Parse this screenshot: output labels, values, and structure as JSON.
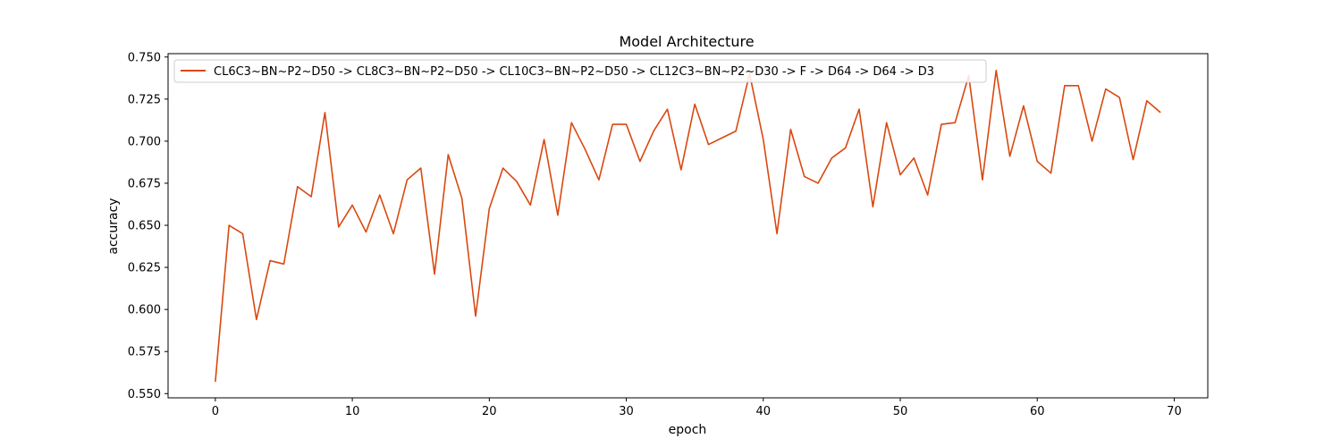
{
  "chart_data": {
    "type": "line",
    "title": "Model Architecture",
    "xlabel": "epoch",
    "ylabel": "accuracy",
    "xlim": [
      -3.45,
      72.45
    ],
    "ylim": [
      0.5475,
      0.752
    ],
    "xticks": [
      0,
      10,
      20,
      30,
      40,
      50,
      60,
      70
    ],
    "yticks": [
      0.55,
      0.575,
      0.6,
      0.625,
      0.65,
      0.675,
      0.7,
      0.725,
      0.75
    ],
    "ytick_labels": [
      "0.550",
      "0.575",
      "0.600",
      "0.625",
      "0.650",
      "0.675",
      "0.700",
      "0.725",
      "0.750"
    ],
    "grid": false,
    "legend_position": "top-left",
    "series": [
      {
        "name": "CL6C3~BN~P2~D50 -> CL8C3~BN~P2~D50 -> CL10C3~BN~P2~D50 -> CL12C3~BN~P2~D30 -> F -> D64 -> D64 -> D3",
        "color": "#d9480f",
        "x": [
          0,
          1,
          2,
          3,
          4,
          5,
          6,
          7,
          8,
          9,
          10,
          11,
          12,
          13,
          14,
          15,
          16,
          17,
          18,
          19,
          20,
          21,
          22,
          23,
          24,
          25,
          26,
          27,
          28,
          29,
          30,
          31,
          32,
          33,
          34,
          35,
          36,
          37,
          38,
          39,
          40,
          41,
          42,
          43,
          44,
          45,
          46,
          47,
          48,
          49,
          50,
          51,
          52,
          53,
          54,
          55,
          56,
          57,
          58,
          59,
          60,
          61,
          62,
          63,
          64,
          65,
          66,
          67,
          68,
          69
        ],
        "y": [
          0.557,
          0.65,
          0.645,
          0.594,
          0.629,
          0.627,
          0.673,
          0.667,
          0.717,
          0.649,
          0.662,
          0.646,
          0.668,
          0.645,
          0.677,
          0.684,
          0.621,
          0.692,
          0.666,
          0.596,
          0.66,
          0.684,
          0.676,
          0.662,
          0.701,
          0.656,
          0.711,
          0.695,
          0.677,
          0.71,
          0.71,
          0.688,
          0.706,
          0.719,
          0.683,
          0.722,
          0.698,
          0.702,
          0.706,
          0.74,
          0.701,
          0.645,
          0.707,
          0.679,
          0.675,
          0.69,
          0.696,
          0.719,
          0.661,
          0.711,
          0.68,
          0.69,
          0.668,
          0.71,
          0.711,
          0.739,
          0.677,
          0.742,
          0.691,
          0.721,
          0.688,
          0.681,
          0.733,
          0.733,
          0.7,
          0.731,
          0.726,
          0.689,
          0.724,
          0.717
        ]
      }
    ]
  }
}
